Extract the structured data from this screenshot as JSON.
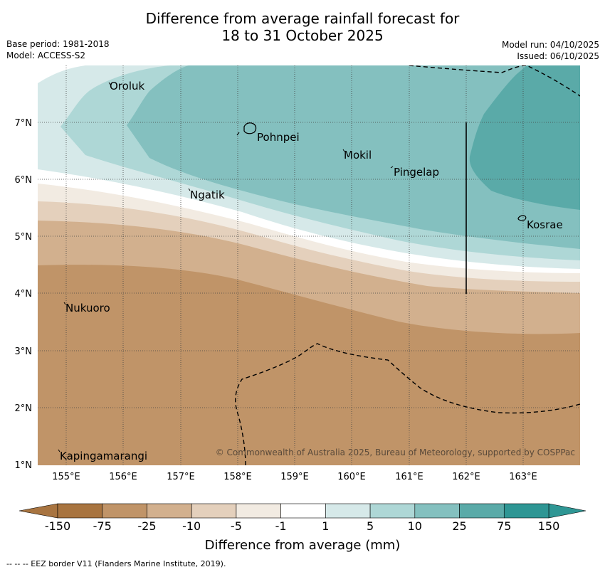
{
  "title": {
    "line1": "Difference from average rainfall forecast for",
    "line2": "18 to 31 October 2025"
  },
  "meta": {
    "base_period": "Base period: 1981-2018",
    "model": "Model: ACCESS-S2",
    "model_run": "Model run: 04/10/2025",
    "issued": "Issued: 06/10/2025"
  },
  "map": {
    "longitudes": [
      "155°E",
      "156°E",
      "157°E",
      "158°E",
      "159°E",
      "160°E",
      "161°E",
      "162°E",
      "163°E"
    ],
    "latitudes": [
      "7°N",
      "6°N",
      "5°N",
      "4°N",
      "3°N",
      "2°N",
      "1°N"
    ],
    "places": {
      "oroluk": "Oroluk",
      "pohnpei": "Pohnpei",
      "mokil": "Mokil",
      "pingelap": "Pingelap",
      "ngatik": "Ngatik",
      "kosrae": "Kosrae",
      "nukuoro": "Nukuoro",
      "kapingamarangi": "Kapingamarangi"
    },
    "copyright": "© Commonwealth of Australia 2025, Bureau of Meteorology, supported by COSPPac"
  },
  "colorbar": {
    "labels": [
      "-150",
      "-75",
      "-25",
      "-10",
      "-5",
      "-1",
      "1",
      "5",
      "10",
      "25",
      "75",
      "150"
    ],
    "colors": [
      "#a87440",
      "#c09468",
      "#d2b08e",
      "#e4d0bc",
      "#f2ebe2",
      "#ffffff",
      "#d6e9e9",
      "#aed7d6",
      "#84c0bf",
      "#5aaaa8",
      "#2e9694"
    ],
    "title": "Difference from average (mm)"
  },
  "footer": "--  --  -- EEZ border V11 (Flanders Marine Institute, 2019)."
}
